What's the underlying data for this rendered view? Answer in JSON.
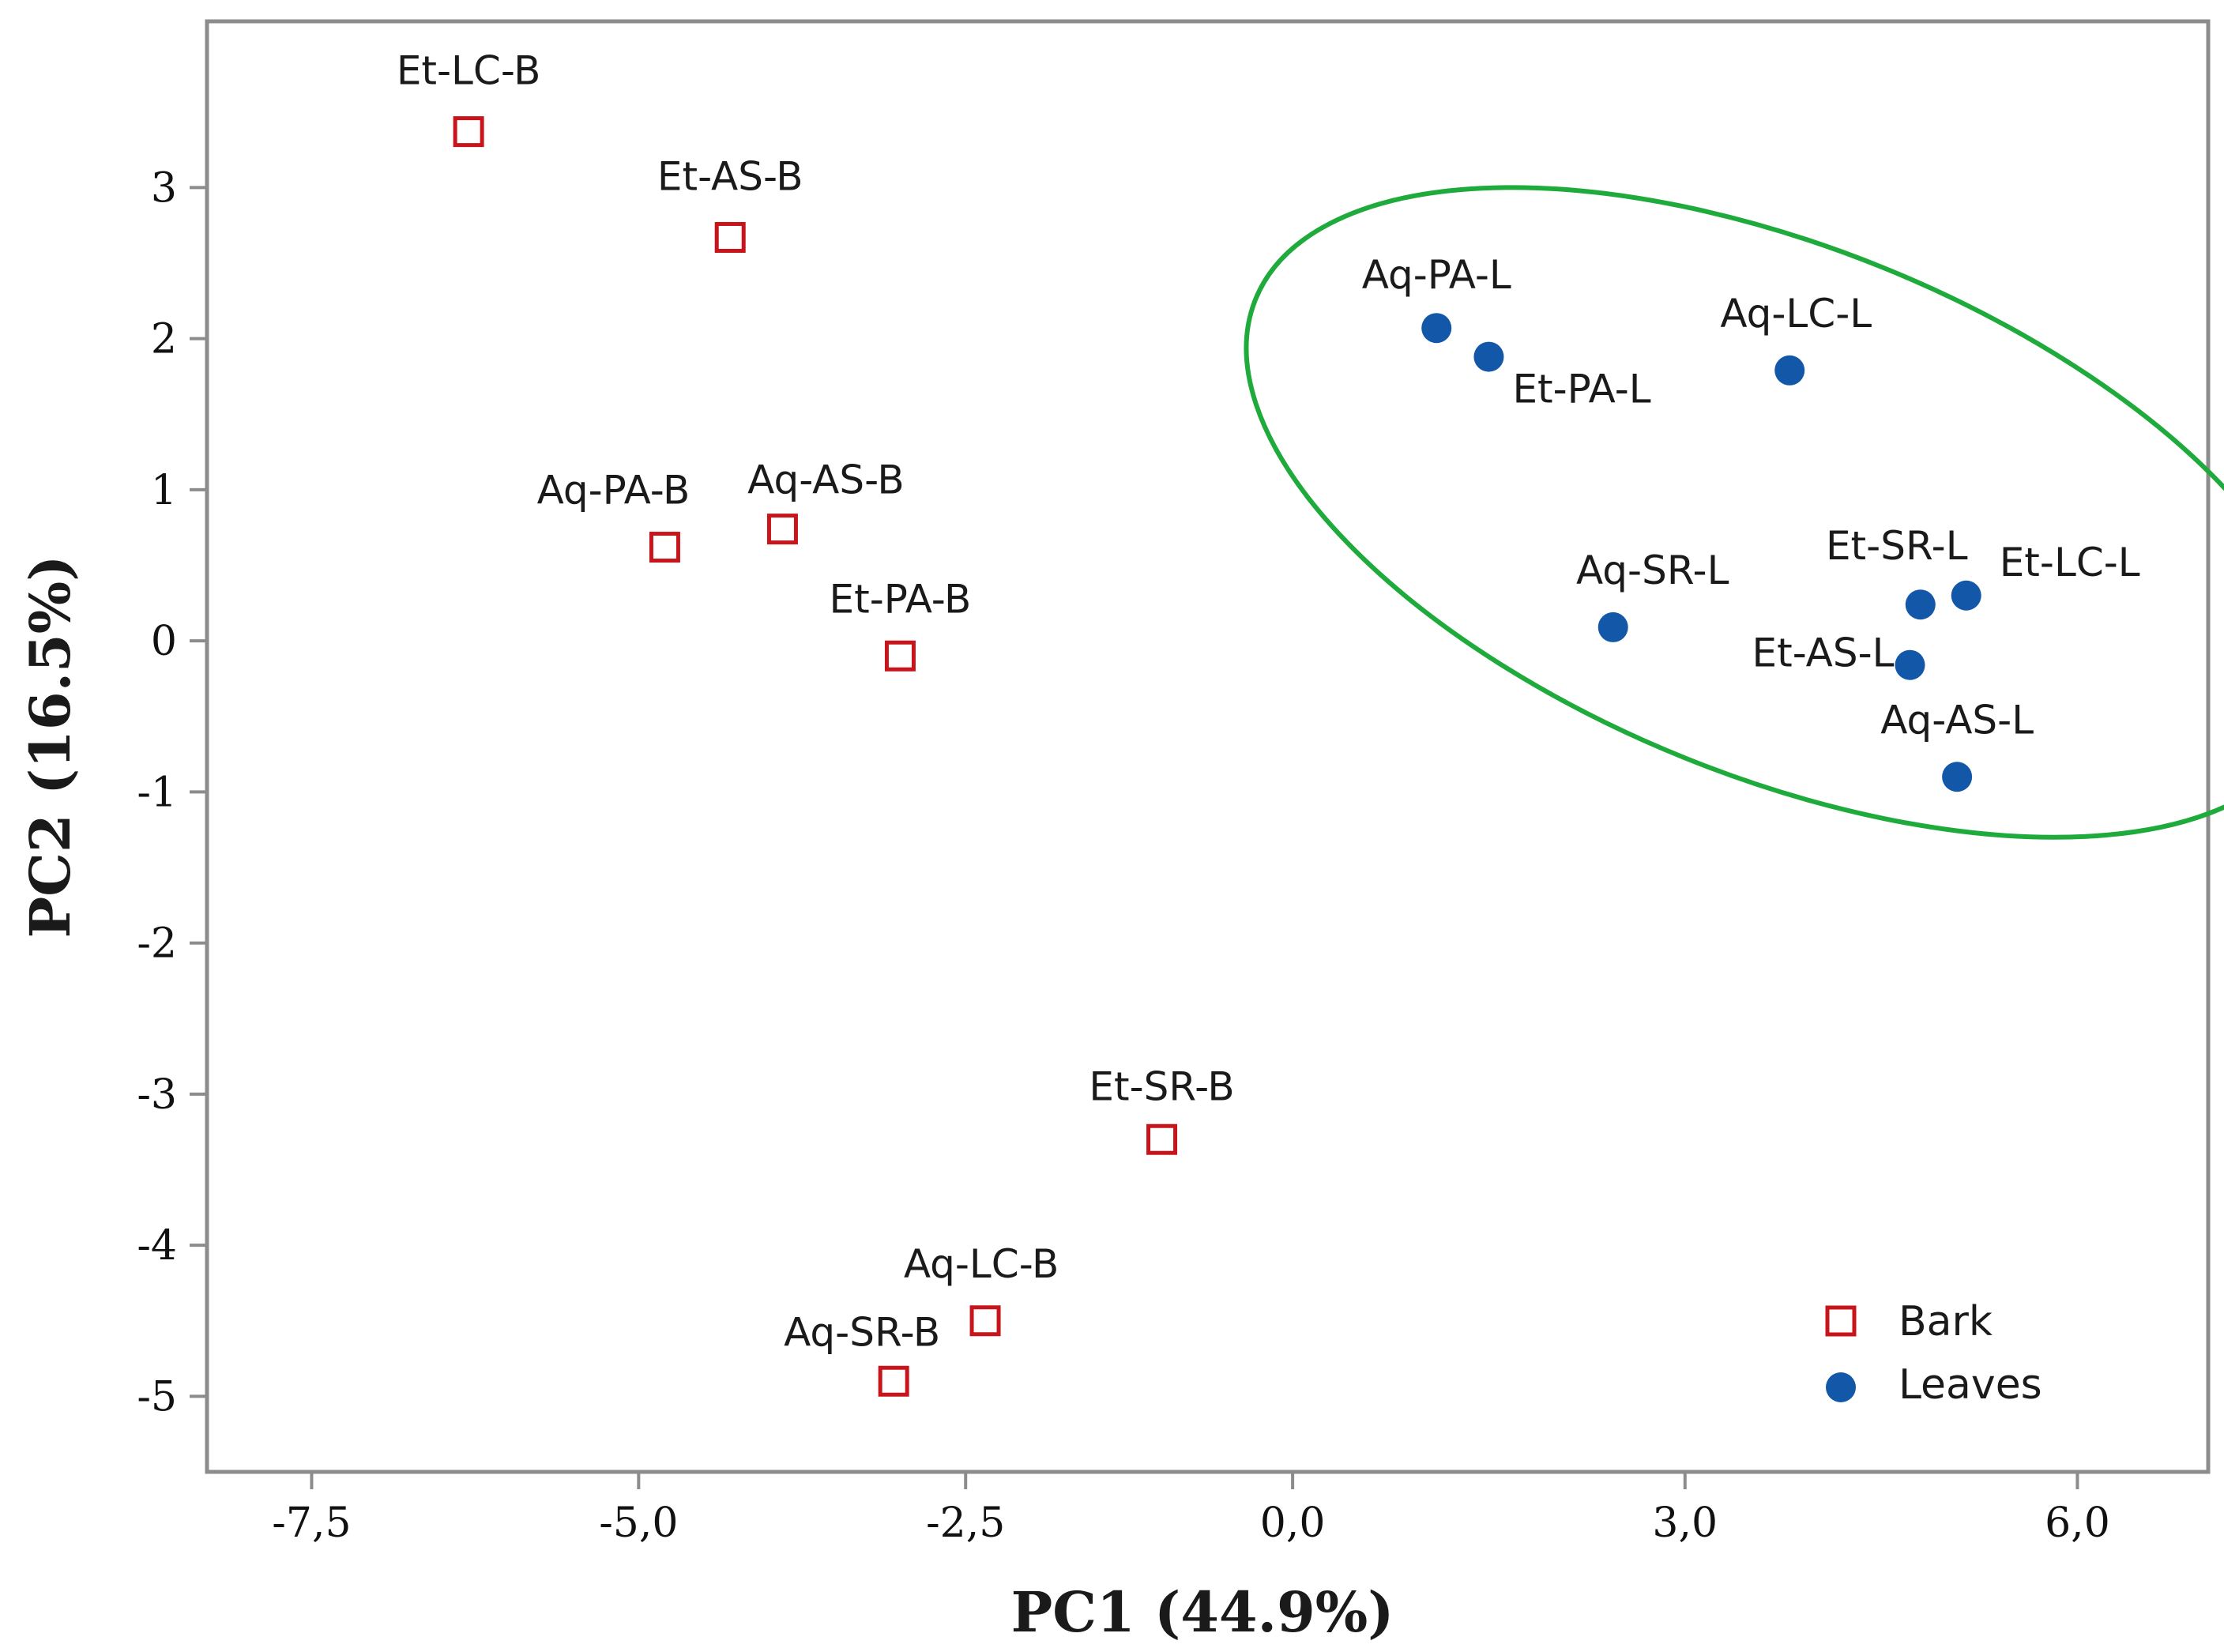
{
  "chart_data": {
    "type": "scatter",
    "title": "",
    "xlabel": "PC1 (44.9%)",
    "ylabel": "PC2 (16.5%)",
    "xlim": [
      -8.3,
      7.0
    ],
    "ylim": [
      -5.5,
      4.1
    ],
    "x_ticks": [
      {
        "value": -7.5,
        "label": "-7,5"
      },
      {
        "value": -5.0,
        "label": "-5,0"
      },
      {
        "value": -2.5,
        "label": "-2,5"
      },
      {
        "value": 0.0,
        "label": "0,0"
      },
      {
        "value": 3.0,
        "label": "3,0"
      },
      {
        "value": 6.0,
        "label": "6,0"
      }
    ],
    "y_ticks": [
      {
        "value": 3,
        "label": "3"
      },
      {
        "value": 2,
        "label": "2"
      },
      {
        "value": 1,
        "label": "1"
      },
      {
        "value": 0,
        "label": "0"
      },
      {
        "value": -1,
        "label": "-1"
      },
      {
        "value": -2,
        "label": "-2"
      },
      {
        "value": -3,
        "label": "-3"
      },
      {
        "value": -4,
        "label": "-4"
      },
      {
        "value": -5,
        "label": "-5"
      }
    ],
    "grid": false,
    "legend_position": "bottom-right",
    "series": [
      {
        "name": "Bark",
        "marker": "open-square",
        "color": "#c8151b",
        "points": [
          {
            "label": "Et-LC-B",
            "x": -6.3,
            "y": 3.37
          },
          {
            "label": "Et-AS-B",
            "x": -4.3,
            "y": 2.67
          },
          {
            "label": "Aq-PA-B",
            "x": -4.8,
            "y": 0.62
          },
          {
            "label": "Aq-AS-B",
            "x": -3.9,
            "y": 0.74
          },
          {
            "label": "Et-PA-B",
            "x": -3.0,
            "y": -0.1
          },
          {
            "label": "Et-SR-B",
            "x": -1.0,
            "y": -3.3
          },
          {
            "label": "Aq-LC-B",
            "x": -2.35,
            "y": -4.5
          },
          {
            "label": "Aq-SR-B",
            "x": -3.05,
            "y": -4.9
          }
        ]
      },
      {
        "name": "Leaves",
        "marker": "filled-circle",
        "color": "#1257a8",
        "points": [
          {
            "label": "Aq-PA-L",
            "x": 1.1,
            "y": 2.07
          },
          {
            "label": "Et-PA-L",
            "x": 1.5,
            "y": 1.88
          },
          {
            "label": "Aq-LC-L",
            "x": 3.8,
            "y": 1.79
          },
          {
            "label": "Aq-SR-L",
            "x": 2.45,
            "y": 0.09
          },
          {
            "label": "Et-SR-L",
            "x": 4.8,
            "y": 0.24
          },
          {
            "label": "Et-LC-L",
            "x": 5.15,
            "y": 0.3
          },
          {
            "label": "Et-AS-L",
            "x": 4.72,
            "y": -0.16
          },
          {
            "label": "Aq-AS-L",
            "x": 5.08,
            "y": -0.9
          }
        ]
      }
    ],
    "annotations": [
      {
        "type": "ellipse",
        "color": "#1faa3c",
        "encloses": "Leaves",
        "center": {
          "x": 3.75,
          "y": 0.85
        },
        "rx": 4.35,
        "ry": 1.75,
        "rotation_deg": 22
      }
    ]
  }
}
